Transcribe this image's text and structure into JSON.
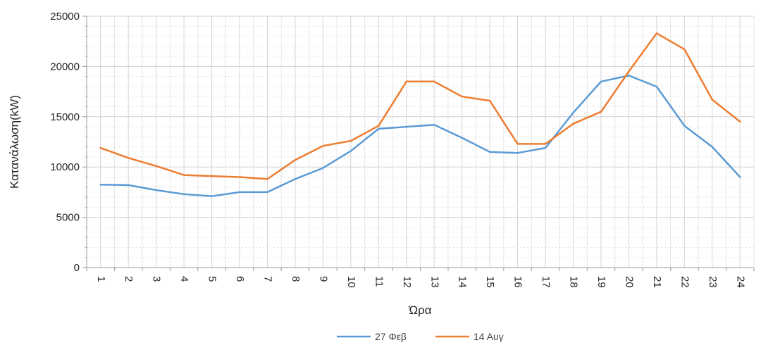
{
  "chart_data": {
    "type": "line",
    "title": "",
    "xlabel": "Ώρα",
    "ylabel": "Κατανάλωση(kW)",
    "categories": [
      "1",
      "2",
      "3",
      "4",
      "5",
      "6",
      "7",
      "8",
      "9",
      "10",
      "11",
      "12",
      "13",
      "14",
      "15",
      "16",
      "17",
      "18",
      "19",
      "20",
      "21",
      "22",
      "23",
      "24"
    ],
    "ylim": [
      0,
      25000
    ],
    "yticks": [
      0,
      5000,
      10000,
      15000,
      20000,
      25000
    ],
    "grid": true,
    "legend_position": "bottom",
    "series": [
      {
        "name": "27 Φεβ",
        "color": "#5b9bd5",
        "values": [
          8250,
          8200,
          7700,
          7300,
          7100,
          7500,
          7500,
          8800,
          9900,
          11600,
          13800,
          14000,
          14200,
          12900,
          11500,
          11400,
          11900,
          15400,
          18500,
          19100,
          18000,
          14100,
          12000,
          9000
        ]
      },
      {
        "name": "14 Αυγ",
        "color": "#ed7d31",
        "values": [
          11900,
          10900,
          10100,
          9200,
          9100,
          9000,
          8800,
          10700,
          12100,
          12600,
          14100,
          18500,
          18500,
          17000,
          16600,
          12300,
          12300,
          14300,
          15500,
          19500,
          23300,
          21700,
          16700,
          14500
        ]
      }
    ]
  }
}
